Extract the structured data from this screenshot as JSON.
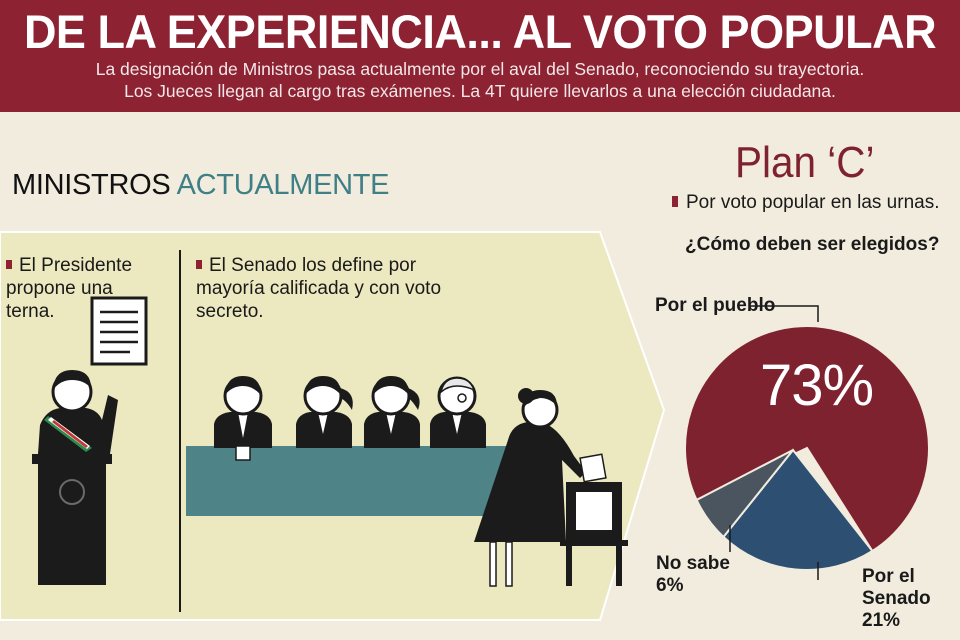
{
  "header": {
    "title": "DE LA EXPERIENCIA... AL VOTO POPULAR",
    "subtitle_line1": "La designación de Ministros pasa actualmente por el aval del Senado, reconociendo su trayectoria.",
    "subtitle_line2": "Los Jueces llegan al cargo tras exámenes. La 4T quiere llevarlos a una elección ciudadana."
  },
  "left": {
    "section_word1": "MINISTROS",
    "section_word2": "ACTUALMENTE",
    "step1": "El Presidente propone una terna.",
    "step2": "El Senado los define por mayoría calificada y con voto secreto."
  },
  "right": {
    "plan_title": "Plan ‘C’",
    "plan_subtitle": "Por voto popular en las urnas.",
    "question": "¿Cómo deben ser elegidos?"
  },
  "chart_data": {
    "type": "pie",
    "title": "¿Cómo deben ser elegidos?",
    "slices": [
      {
        "label": "Por el pueblo",
        "value": 73,
        "display": "73%",
        "color": "#7f2230"
      },
      {
        "label": "Por el Senado",
        "value": 21,
        "display": "21%",
        "color": "#2d4f72"
      },
      {
        "label": "No sabe",
        "value": 6,
        "display": "6%",
        "color": "#4a5560"
      }
    ]
  },
  "colors": {
    "header_bg": "#8d2232",
    "accent_teal": "#3f7f86",
    "band": "#ece8c0"
  }
}
